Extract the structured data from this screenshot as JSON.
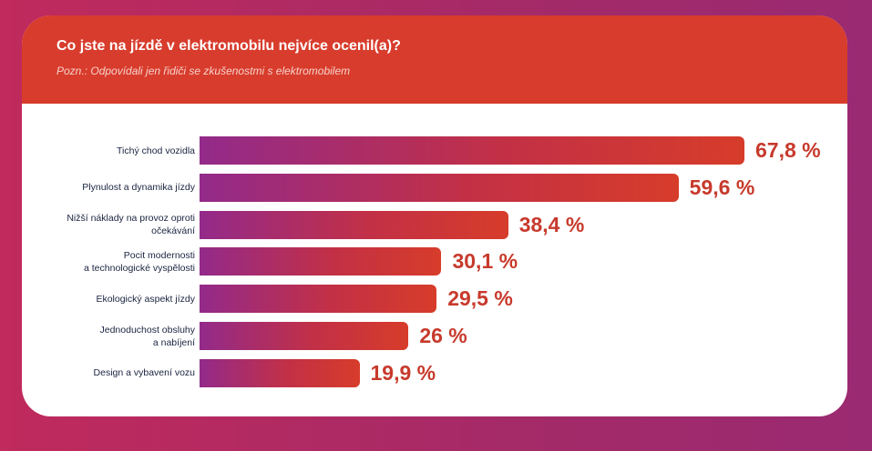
{
  "colors": {
    "background": "#a82a66",
    "header": "#d83c2c",
    "card": "#ffffff",
    "bar_start": "#932a8a",
    "bar_end": "#d73c2a",
    "value_text": "#c73a2c",
    "label_text": "#1a2440"
  },
  "header": {
    "title": "Co jste na jízdě v elektromobilu nejvíce ocenil(a)?",
    "subtitle": "Pozn.: Odpovídali jen řidiči se zkušenostmi s elektromobilem"
  },
  "chart_data": {
    "type": "bar",
    "orientation": "horizontal",
    "title": "Co jste na jízdě v elektromobilu nejvíce ocenil(a)?",
    "subtitle": "Pozn.: Odpovídali jen řidiči se zkušenostmi s elektromobilem",
    "categories": [
      "Tichý chod vozidla",
      "Plynulost a dynamika jízdy",
      "Nižší náklady na provoz oproti očekávání",
      "Pocit modernosti a technologické vyspělosti",
      "Ekologický aspekt jízdy",
      "Jednoduchost obsluhy a nabíjení",
      "Design a vybavení vozu"
    ],
    "category_lines": [
      [
        "Tichý chod vozidla"
      ],
      [
        "Plynulost a dynamika jízdy"
      ],
      [
        "Nižší náklady na provoz oproti",
        "očekávání"
      ],
      [
        "Pocit modernosti",
        "a technologické vyspělosti"
      ],
      [
        "Ekologický aspekt jízdy"
      ],
      [
        "Jednoduchost obsluhy",
        "a nabíjení"
      ],
      [
        "Design a vybavení vozu"
      ]
    ],
    "values": [
      67.8,
      59.6,
      38.4,
      30.1,
      29.5,
      26,
      19.9
    ],
    "value_labels": [
      "67,8 %",
      "59,6 %",
      "38,4 %",
      "30,1 %",
      "29,5 %",
      "26 %",
      "19,9 %"
    ],
    "unit": "%",
    "xlim": [
      0,
      100
    ],
    "grid": false,
    "legend": "none"
  }
}
